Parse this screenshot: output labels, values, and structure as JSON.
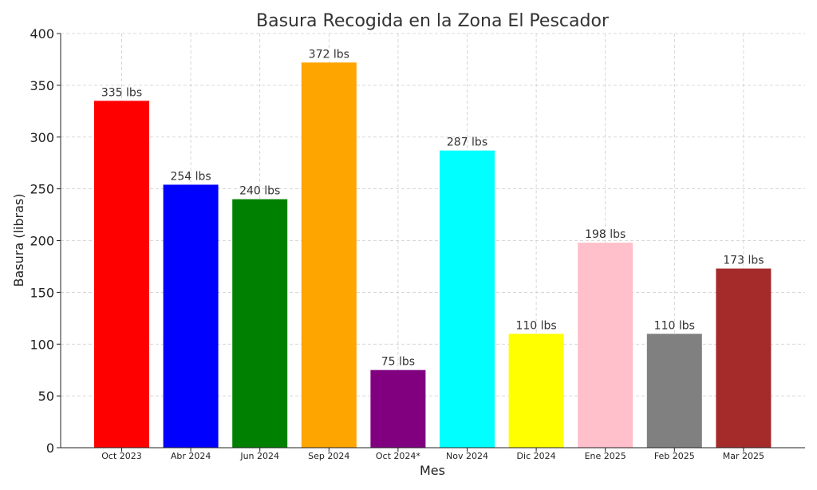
{
  "chart_data": {
    "type": "bar",
    "title": "Basura Recogida en la Zona El Pescador",
    "xlabel": "Mes",
    "ylabel": "Basura (libras)",
    "ylim": [
      0,
      400
    ],
    "yticks": [
      0,
      50,
      100,
      150,
      200,
      250,
      300,
      350,
      400
    ],
    "grid": true,
    "categories": [
      "Oct 2023",
      "Abr 2024",
      "Jun 2024",
      "Sep 2024",
      "Oct 2024*",
      "Nov 2024",
      "Dic 2024",
      "Ene 2025",
      "Feb 2025",
      "Mar 2025"
    ],
    "values": [
      335,
      254,
      240,
      372,
      75,
      287,
      110,
      198,
      110,
      173
    ],
    "data_labels": [
      "335 lbs",
      "254 lbs",
      "240 lbs",
      "372 lbs",
      "75 lbs",
      "287 lbs",
      "110 lbs",
      "198 lbs",
      "110 lbs",
      "173 lbs"
    ],
    "colors": [
      "#ff0000",
      "#0000ff",
      "#008000",
      "#ffa500",
      "#800080",
      "#00ffff",
      "#ffff00",
      "#ffc0cb",
      "#808080",
      "#a52a2a"
    ]
  }
}
